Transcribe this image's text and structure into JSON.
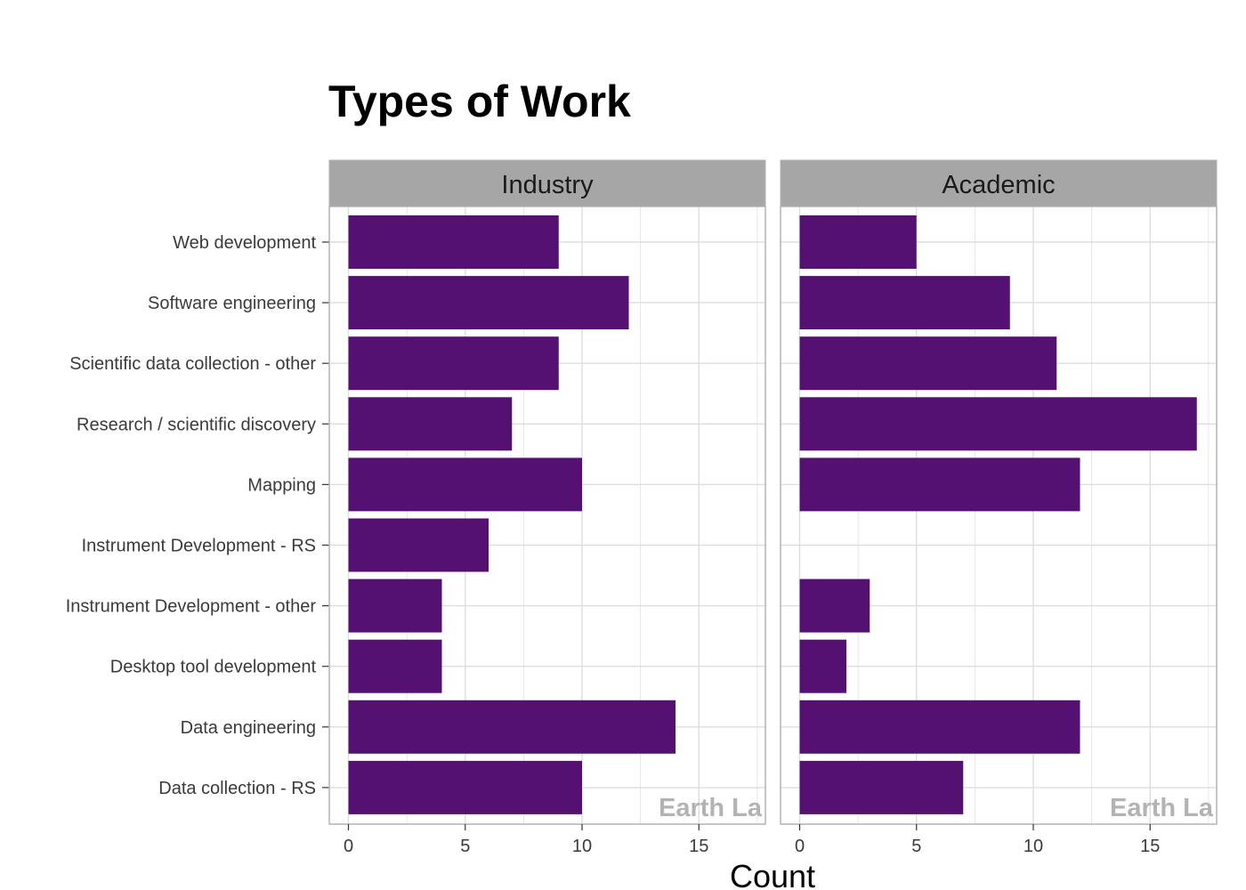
{
  "chart_data": {
    "type": "bar",
    "orientation": "horizontal",
    "title": "Types of Work",
    "xlabel": "Count",
    "ylabel": "",
    "xlim": [
      0,
      17.8
    ],
    "xticks": [
      0,
      5,
      10,
      15
    ],
    "categories": [
      "Web development",
      "Software engineering",
      "Scientific data collection - other",
      "Research / scientific discovery",
      "Mapping",
      "Instrument Development - RS",
      "Instrument Development - other",
      "Desktop tool development",
      "Data engineering",
      "Data collection - RS"
    ],
    "facets": [
      {
        "name": "Industry",
        "values": [
          9,
          12,
          9,
          7,
          10,
          6,
          4,
          4,
          14,
          10
        ]
      },
      {
        "name": "Academic",
        "values": [
          5,
          9,
          11,
          17,
          12,
          0,
          3,
          2,
          12,
          7
        ]
      }
    ],
    "watermark": "Earth La",
    "grid": true,
    "legend": "none",
    "colors": {
      "bar": "#541172",
      "strip": "#a6a6a6",
      "panel_border": "#b3b3b3",
      "grid": "#dedede",
      "watermark": "#b3b3b3"
    }
  }
}
